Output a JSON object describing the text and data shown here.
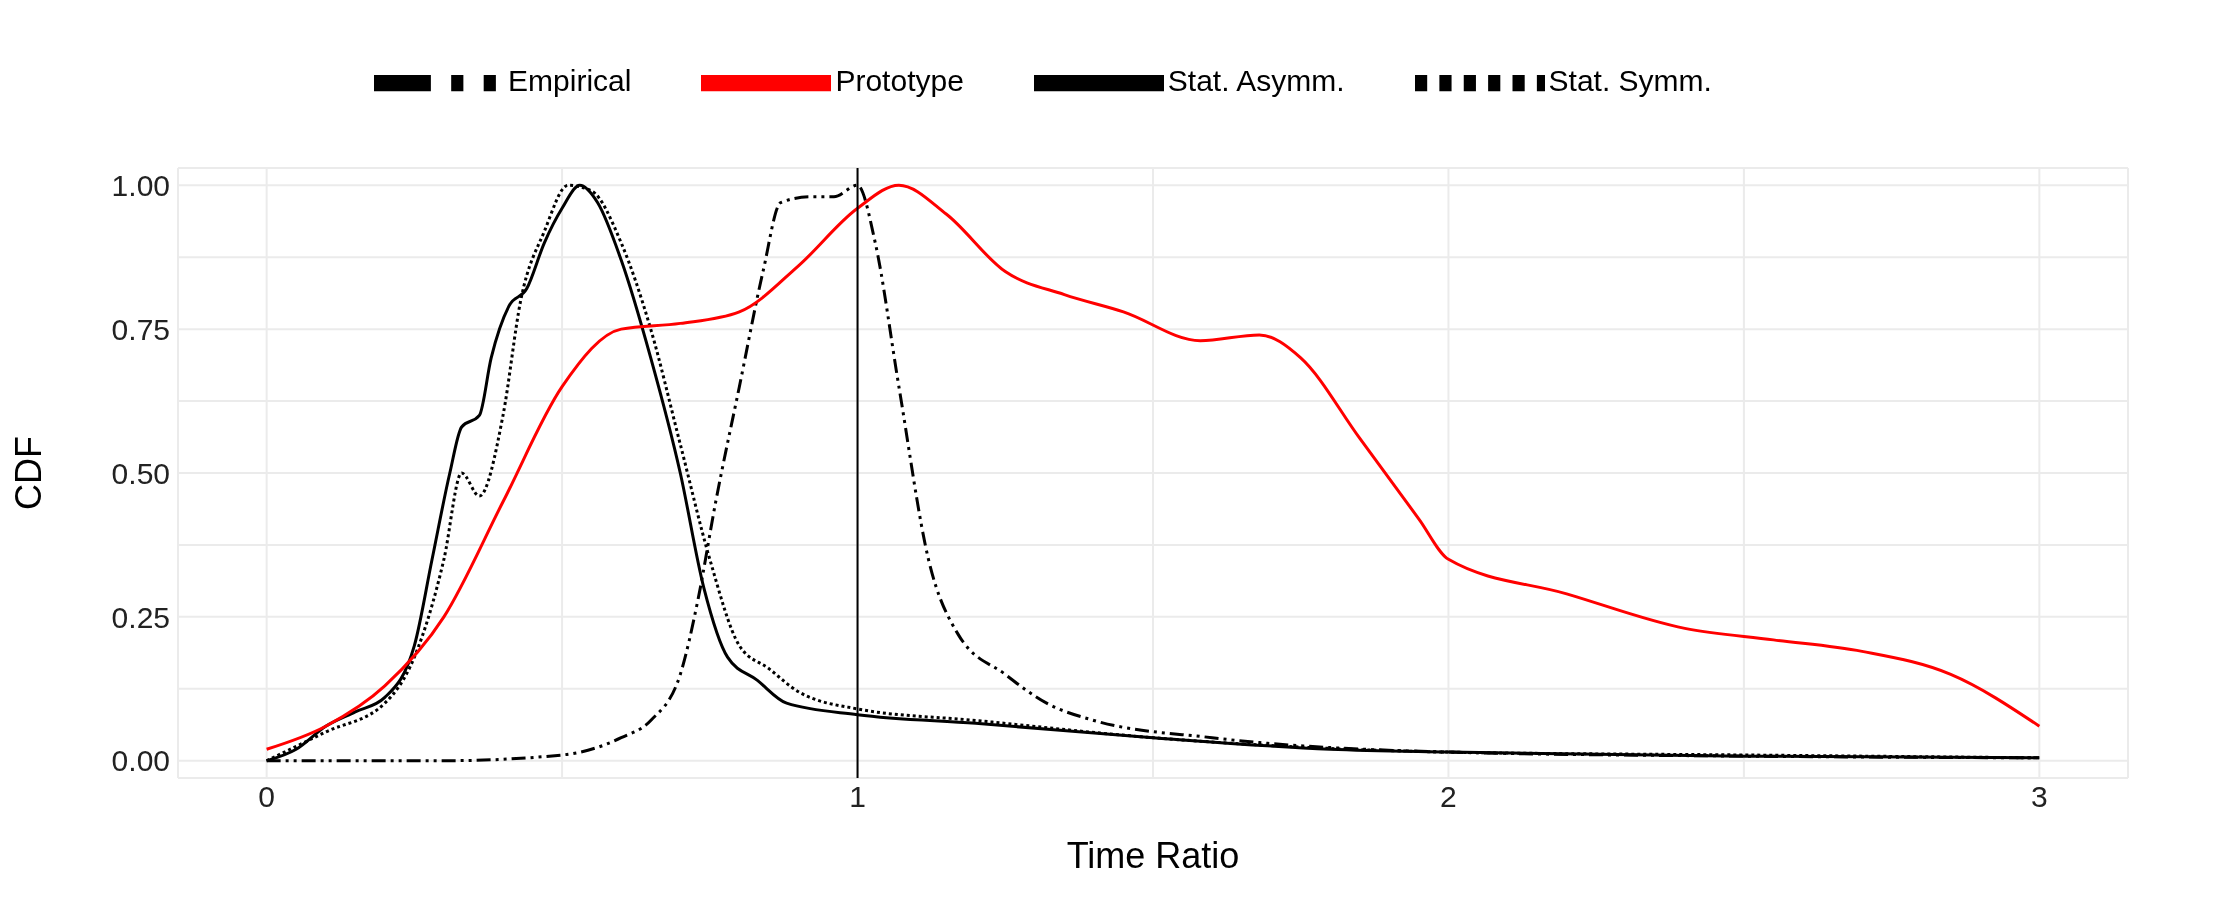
{
  "chart_data": {
    "type": "line",
    "xlabel": "Time Ratio",
    "ylabel": "CDF",
    "xlim": [
      -0.15,
      3.15
    ],
    "ylim": [
      -0.03,
      1.03
    ],
    "xticks": [
      0,
      {
        "value": 0.5,
        "label": null
      },
      1,
      {
        "value": 1.5,
        "label": null
      },
      2,
      {
        "value": 2.5,
        "label": null
      },
      3
    ],
    "yticks": [
      {
        "value": 0,
        "label": "0.00"
      },
      {
        "value": 0.125,
        "label": null
      },
      {
        "value": 0.25,
        "label": "0.25"
      },
      {
        "value": 0.375,
        "label": null
      },
      {
        "value": 0.5,
        "label": "0.50"
      },
      {
        "value": 0.625,
        "label": null
      },
      {
        "value": 0.75,
        "label": "0.75"
      },
      {
        "value": 0.875,
        "label": null
      },
      {
        "value": 1,
        "label": "1.00"
      }
    ],
    "grid": true,
    "legend": "top",
    "marker": "none",
    "ref_lines": [
      {
        "axis": "x",
        "value": 1,
        "color": "#000000",
        "line_style": "solid"
      }
    ],
    "series": [
      {
        "name": "Stat. Symm.",
        "color": "#000000",
        "line_style": "dotted",
        "x": [
          0,
          0.1,
          0.2,
          0.25,
          0.3,
          0.33,
          0.36,
          0.4,
          0.43,
          0.47,
          0.51,
          0.55,
          0.6,
          0.65,
          0.7,
          0.75,
          0.8,
          0.85,
          0.9,
          1,
          1.2,
          1.5,
          2,
          2.5,
          3
        ],
        "values": [
          0,
          0.05,
          0.1,
          0.18,
          0.35,
          0.5,
          0.46,
          0.6,
          0.8,
          0.92,
          1,
          0.99,
          0.9,
          0.75,
          0.55,
          0.35,
          0.2,
          0.16,
          0.12,
          0.09,
          0.07,
          0.04,
          0.015,
          0.01,
          0.005
        ]
      },
      {
        "name": "Stat. Asymm.",
        "color": "#000000",
        "line_style": "solid",
        "x": [
          0,
          0.05,
          0.1,
          0.15,
          0.2,
          0.25,
          0.28,
          0.31,
          0.33,
          0.36,
          0.38,
          0.41,
          0.44,
          0.47,
          0.5,
          0.53,
          0.56,
          0.6,
          0.65,
          0.7,
          0.74,
          0.78,
          0.83,
          0.88,
          1,
          1.2,
          1.5,
          1.8,
          2,
          2.5,
          3
        ],
        "values": [
          0,
          0.02,
          0.06,
          0.085,
          0.11,
          0.2,
          0.35,
          0.5,
          0.58,
          0.6,
          0.7,
          0.79,
          0.82,
          0.9,
          0.96,
          1,
          0.97,
          0.87,
          0.7,
          0.5,
          0.3,
          0.18,
          0.14,
          0.1,
          0.08,
          0.065,
          0.04,
          0.02,
          0.015,
          0.008,
          0.005
        ]
      },
      {
        "name": "Empirical",
        "color": "#000000",
        "line_style": "dashdot",
        "x": [
          0,
          0.3,
          0.5,
          0.6,
          0.65,
          0.7,
          0.73,
          0.76,
          0.8,
          0.84,
          0.87,
          0.92,
          0.96,
          1,
          1.03,
          1.07,
          1.12,
          1.17,
          1.25,
          1.32,
          1.4,
          1.6,
          2,
          2.5,
          3
        ],
        "values": [
          0,
          0,
          0.01,
          0.04,
          0.07,
          0.15,
          0.28,
          0.45,
          0.65,
          0.85,
          0.97,
          0.98,
          0.98,
          1,
          0.9,
          0.65,
          0.35,
          0.22,
          0.15,
          0.1,
          0.07,
          0.04,
          0.015,
          0.008,
          0.005
        ]
      },
      {
        "name": "Prototype",
        "color": "#ff0000",
        "line_style": "solid",
        "x": [
          0,
          0.1,
          0.2,
          0.3,
          0.4,
          0.5,
          0.6,
          0.7,
          0.8,
          0.9,
          1,
          1.07,
          1.15,
          1.25,
          1.35,
          1.45,
          1.58,
          1.68,
          1.75,
          1.85,
          1.95,
          2,
          2.2,
          2.4,
          2.55,
          2.7,
          2.85,
          3
        ],
        "values": [
          0.02,
          0.06,
          0.13,
          0.25,
          0.45,
          0.65,
          0.75,
          0.76,
          0.78,
          0.86,
          0.96,
          1,
          0.95,
          0.85,
          0.81,
          0.78,
          0.73,
          0.74,
          0.7,
          0.56,
          0.42,
          0.35,
          0.29,
          0.23,
          0.21,
          0.19,
          0.15,
          0.06
        ]
      }
    ]
  }
}
